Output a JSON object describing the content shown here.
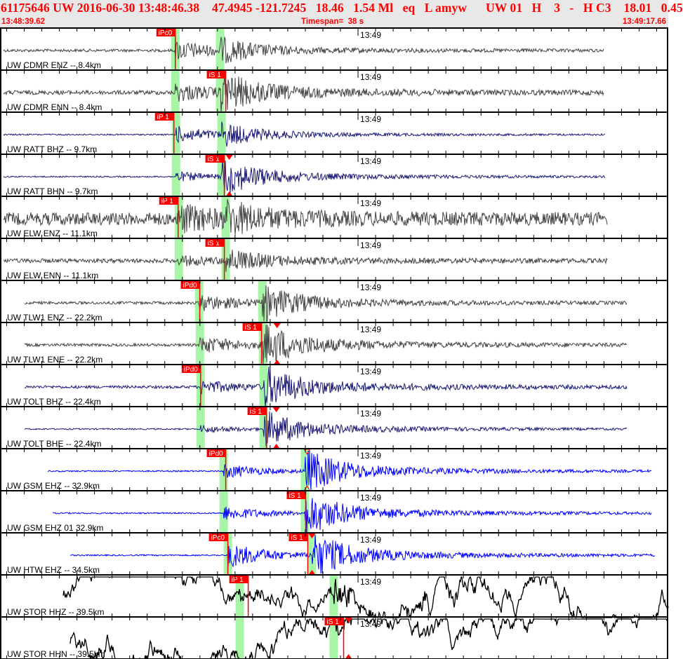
{
  "header": {
    "title": "61175646 UW 2016-06-30 13:48:46.38    47.4945 -121.7245   18.46   1.54 Ml   eq   L amyw      UW 01   H    3   -   H C3    18.01   0.45",
    "start_time": "13:48:39.62",
    "timespan_label": "Timespan=  38 s",
    "end_time": "13:49:17.66"
  },
  "axis": {
    "minute_label": "13:49",
    "start": "13:48:39.62",
    "end": "13:49:17.66"
  },
  "colors": {
    "gray": "#444444",
    "navy": "#1c1c78",
    "blue": "#0000ff",
    "black": "#000000",
    "pick": "#ff0000",
    "window": "#a8f5a8",
    "header_bg": "#e8e8e8"
  },
  "channels": [
    {
      "label": "UW CDMR ENZ -- 8.4km",
      "color": "gray",
      "windows": [
        "13:48:49.60",
        "13:48:52.15"
      ],
      "picks": [
        {
          "label": "iPc0",
          "time": "13:48:49.60"
        }
      ]
    },
    {
      "label": "UW CDMR ENN -- 8.4km",
      "color": "gray",
      "windows": [
        "13:48:49.60",
        "13:48:52.15"
      ],
      "picks": [
        {
          "label": "iS 1",
          "time": "13:48:52.47"
        }
      ]
    },
    {
      "label": "UW RATT BHZ -- 9.7km",
      "color": "navy",
      "windows": [
        "13:48:49.64",
        "13:48:52.23"
      ],
      "picks": [
        {
          "label": "iP 1",
          "time": "13:48:49.52"
        }
      ]
    },
    {
      "label": "UW RATT BHN -- 9.7km",
      "color": "navy",
      "windows": [
        "13:48:49.64",
        "13:48:52.23"
      ],
      "picks": [
        {
          "label": "iS 1",
          "time": "13:48:52.39",
          "marker": "13:48:52.67"
        }
      ]
    },
    {
      "label": "UW ELW ENZ -- 11.1km",
      "color": "gray",
      "windows": [
        "13:48:49.80",
        "13:48:52.47"
      ],
      "picks": [
        {
          "label": "iP 1",
          "time": "13:48:49.76"
        }
      ]
    },
    {
      "label": "UW ELW ENN -- 11.1km",
      "color": "gray",
      "windows": [
        "13:48:49.80",
        "13:48:52.47"
      ],
      "picks": [
        {
          "label": "iS 1",
          "time": "13:48:52.39"
        }
      ]
    },
    {
      "label": "UW TLW1 ENZ -- 22.2km",
      "color": "gray",
      "windows": [
        "13:48:50.96",
        "13:48:54.55"
      ],
      "picks": [
        {
          "label": "iPd0",
          "time": "13:48:50.99"
        }
      ]
    },
    {
      "label": "UW TLW1 ENE -- 22.2km",
      "color": "gray",
      "windows": [
        "13:48:51.00",
        "13:48:54.59"
      ],
      "picks": [
        {
          "label": "iS 1",
          "time": "13:48:54.51",
          "marker": "13:48:55.39"
        }
      ]
    },
    {
      "label": "UW TOLT BHZ -- 22.4km",
      "color": "navy",
      "windows": [
        "13:48:51.04",
        "13:48:54.63"
      ],
      "picks": [
        {
          "label": "iPd0",
          "time": "13:48:51.04"
        }
      ]
    },
    {
      "label": "UW TOLT BHE -- 22.4km",
      "color": "navy",
      "windows": [
        "13:48:51.04",
        "13:48:54.63"
      ],
      "picks": [
        {
          "label": "iS 1",
          "time": "13:48:54.79",
          "marker": "13:48:55.35"
        }
      ]
    },
    {
      "label": "UW GSM EHZ -- 32.9km",
      "color": "blue",
      "windows": [
        "13:48:52.35",
        "13:48:56.98"
      ],
      "picks": [
        {
          "label": "iPd0",
          "time": "13:48:52.47"
        }
      ],
      "hollow_marker": "13:48:57.10"
    },
    {
      "label": "UW GSM EHZ 01 32.9km",
      "color": "blue",
      "windows": [
        "13:48:52.35",
        "13:48:56.98"
      ],
      "picks": [
        {
          "label": "iS 1",
          "time": "13:48:57.02"
        }
      ]
    },
    {
      "label": "UW HTW EHZ -- 34.5km",
      "color": "blue",
      "windows": [
        "13:48:52.59",
        "13:48:57.38"
      ],
      "picks": [
        {
          "label": "iPc0",
          "time": "13:48:52.59"
        },
        {
          "label": "iS 1",
          "time": "13:48:57.14",
          "marker": "13:48:57.38"
        }
      ]
    },
    {
      "label": "UW STOR HHZ -- 39.5km",
      "color": "black",
      "windows": [
        "13:48:53.27",
        "13:48:58.62"
      ],
      "picks": [
        {
          "label": "iP 1",
          "time": "13:48:53.75"
        }
      ]
    },
    {
      "label": "UW STOR HHN -- 39.5km",
      "color": "black",
      "windows": [
        "13:48:53.27",
        "13:48:58.62"
      ],
      "picks": [
        {
          "label": "iS 1",
          "time": "13:48:59.18",
          "marker": "13:48:59.46"
        }
      ]
    }
  ]
}
